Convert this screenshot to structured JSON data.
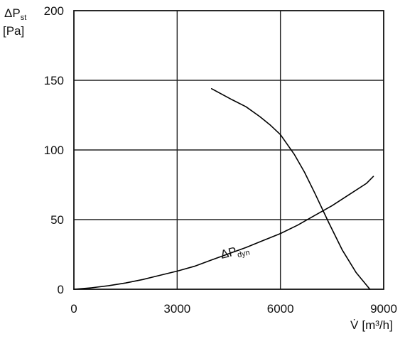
{
  "chart_data": {
    "type": "line",
    "y_label": {
      "main": "ΔP",
      "sub": "st",
      "unit": "[Pa]"
    },
    "x_label": {
      "main": "V̇",
      "unit": "[m³/h]"
    },
    "x_ticks": [
      "0",
      "3000",
      "6000",
      "9000"
    ],
    "y_ticks": [
      "0",
      "50",
      "100",
      "150",
      "200"
    ],
    "xlim": [
      0,
      9000
    ],
    "ylim": [
      0,
      200
    ],
    "grid": true,
    "series": [
      {
        "name": "",
        "points": [
          [
            4000,
            144
          ],
          [
            4600,
            136
          ],
          [
            5000,
            131
          ],
          [
            5400,
            124
          ],
          [
            5700,
            118
          ],
          [
            6000,
            111
          ],
          [
            6400,
            97
          ],
          [
            6700,
            84
          ],
          [
            7000,
            69
          ],
          [
            7400,
            48
          ],
          [
            7800,
            28
          ],
          [
            8200,
            12
          ],
          [
            8600,
            0
          ]
        ]
      },
      {
        "name": "ΔPdyn",
        "label": {
          "main": "ΔP",
          "sub": "dyn"
        },
        "points": [
          [
            0,
            0
          ],
          [
            500,
            1
          ],
          [
            1000,
            2.5
          ],
          [
            1500,
            4.5
          ],
          [
            2000,
            7
          ],
          [
            2500,
            10
          ],
          [
            3000,
            13
          ],
          [
            3500,
            16.5
          ],
          [
            4000,
            21
          ],
          [
            4500,
            25.5
          ],
          [
            5000,
            30
          ],
          [
            5500,
            35
          ],
          [
            6000,
            40
          ],
          [
            6500,
            46
          ],
          [
            7000,
            53
          ],
          [
            7500,
            60
          ],
          [
            8000,
            68
          ],
          [
            8500,
            76
          ],
          [
            8700,
            81
          ]
        ]
      }
    ]
  }
}
